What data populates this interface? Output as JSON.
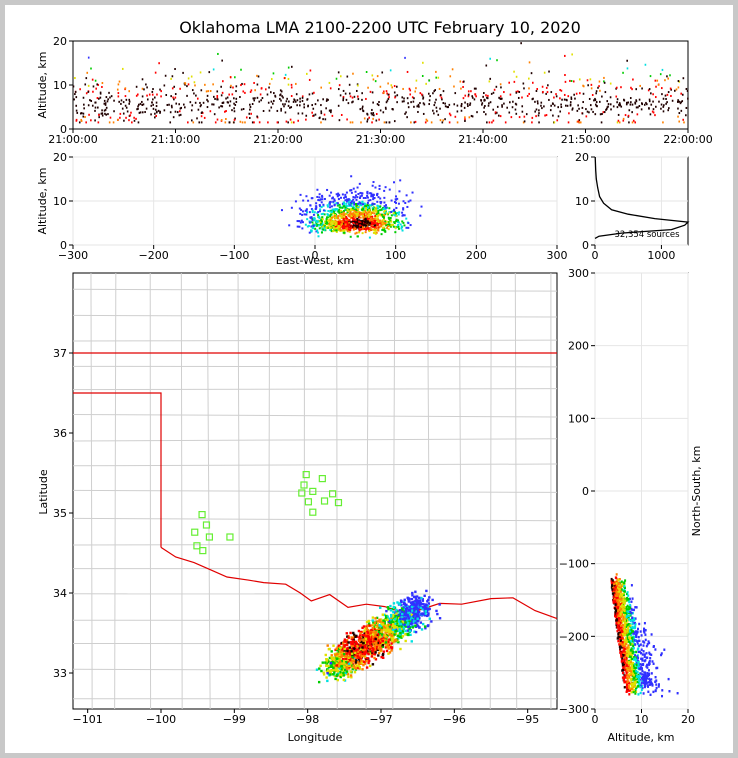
{
  "chart_data": [
    {
      "id": "time_height",
      "type": "scatter",
      "title": "Oklahoma LMA 2100-2200 UTC February 10, 2020",
      "ylabel": "Altitude, km",
      "xlim": [
        "21:00:00",
        "22:00:00"
      ],
      "ylim": [
        0,
        20
      ],
      "xticks": [
        "21:00:00",
        "21:10:00",
        "21:20:00",
        "21:30:00",
        "21:40:00",
        "21:50:00",
        "22:00:00"
      ],
      "yticks": [
        "0",
        "10",
        "20"
      ],
      "color_scale": [
        "#3030ff",
        "#00e0e0",
        "#00cc00",
        "#e0e000",
        "#ff8000",
        "#ff0000",
        "#200000"
      ]
    },
    {
      "id": "ew_altitude",
      "type": "heatmap",
      "xlabel": "East-West, km",
      "ylabel": "Altitude, km",
      "xlim": [
        -300,
        300
      ],
      "ylim": [
        0,
        20
      ],
      "xticks": [
        "−300",
        "−200",
        "−100",
        "0",
        "100",
        "200",
        "300"
      ],
      "yticks": [
        "0",
        "10",
        "20"
      ]
    },
    {
      "id": "altitude_histogram",
      "type": "line",
      "xlim": [
        0,
        1400
      ],
      "ylim": [
        0,
        20
      ],
      "xticks": [
        "0",
        "1000"
      ],
      "yticks": [
        "0",
        "10",
        "20"
      ],
      "annotation": "32,354 sources",
      "profile": [
        [
          0,
          1.5
        ],
        [
          60,
          2.0
        ],
        [
          400,
          2.7
        ],
        [
          1150,
          3.5
        ],
        [
          1350,
          4.5
        ],
        [
          1400,
          5.2
        ],
        [
          900,
          6.0
        ],
        [
          500,
          7.0
        ],
        [
          250,
          8.0
        ],
        [
          130,
          9.5
        ],
        [
          70,
          11
        ],
        [
          40,
          13
        ],
        [
          20,
          15
        ],
        [
          10,
          17
        ],
        [
          3,
          20
        ]
      ]
    },
    {
      "id": "plan_view",
      "type": "heatmap",
      "xlabel": "Longitude",
      "ylabel": "Latitude",
      "xlim": [
        -101.2,
        -94.6
      ],
      "ylim": [
        32.55,
        38.0
      ],
      "xticks": [
        "−101",
        "−100",
        "−99",
        "−98",
        "−97",
        "−96",
        "−95"
      ],
      "yticks": [
        "33",
        "34",
        "35",
        "36",
        "37"
      ],
      "stations": [
        [
          -98.02,
          35.48
        ],
        [
          -97.8,
          35.43
        ],
        [
          -98.05,
          35.35
        ],
        [
          -98.08,
          35.25
        ],
        [
          -97.93,
          35.27
        ],
        [
          -97.66,
          35.24
        ],
        [
          -97.99,
          35.14
        ],
        [
          -97.77,
          35.15
        ],
        [
          -97.58,
          35.13
        ],
        [
          -97.93,
          35.01
        ],
        [
          -99.44,
          34.98
        ],
        [
          -99.38,
          34.85
        ],
        [
          -99.54,
          34.76
        ],
        [
          -99.34,
          34.7
        ],
        [
          -99.06,
          34.7
        ],
        [
          -99.51,
          34.59
        ],
        [
          -99.43,
          34.53
        ]
      ]
    },
    {
      "id": "ns_altitude",
      "type": "heatmap",
      "xlabel": "Altitude, km",
      "ylabel": "North-South, km",
      "xlim": [
        0,
        20
      ],
      "ylim": [
        -300,
        300
      ],
      "xticks": [
        "0",
        "10",
        "20"
      ],
      "yticks": [
        "−300",
        "−200",
        "−100",
        "0",
        "100",
        "200",
        "300"
      ]
    }
  ]
}
